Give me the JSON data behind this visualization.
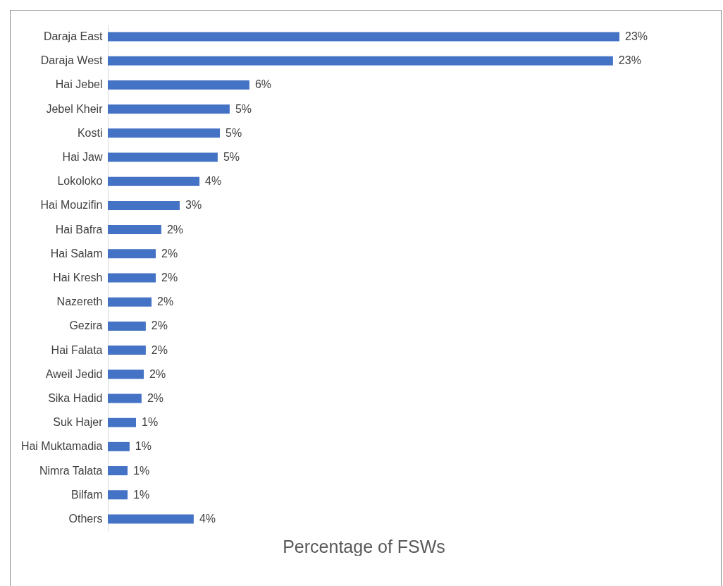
{
  "chart_data": {
    "type": "bar",
    "orientation": "horizontal",
    "xlabel": "Percentage of FSWs",
    "categories": [
      "Daraja East",
      "Daraja West",
      "Hai Jebel",
      "Jebel Kheir",
      "Kosti",
      "Hai Jaw",
      "Lokoloko",
      "Hai Mouzifin",
      "Hai Bafra",
      "Hai Salam",
      "Hai Kresh",
      "Nazereth",
      "Gezira",
      "Hai Falata",
      "Aweil Jedid",
      "Sika Hadid",
      "Suk Hajer",
      "Hai Muktamadia",
      "Nimra Talata",
      "Bilfam",
      "Others"
    ],
    "values": [
      23.05,
      22.76,
      6.38,
      5.49,
      5.05,
      4.95,
      4.13,
      3.24,
      2.41,
      2.16,
      2.16,
      1.97,
      1.71,
      1.71,
      1.62,
      1.52,
      1.27,
      0.98,
      0.89,
      0.89,
      3.87
    ],
    "value_labels": [
      "23%",
      "23%",
      "6%",
      "5%",
      "5%",
      "5%",
      "4%",
      "3%",
      "2%",
      "2%",
      "2%",
      "2%",
      "2%",
      "2%",
      "2%",
      "2%",
      "1%",
      "1%",
      "1%",
      "1%",
      "4%"
    ],
    "color": "#4472c4",
    "grid": false
  }
}
